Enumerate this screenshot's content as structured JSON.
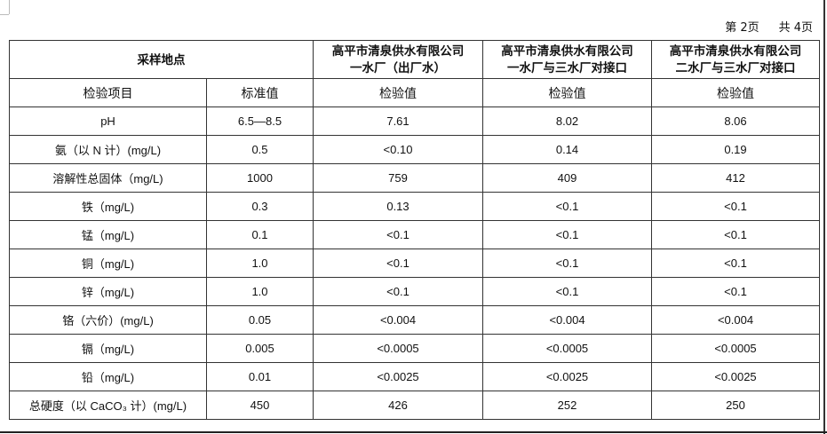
{
  "page_info": {
    "current": "第 2页",
    "total": "共 4页"
  },
  "header": {
    "sampling_location": "采样地点",
    "sites": [
      {
        "line1": "高平市清泉供水有限公司",
        "line2": "一水厂（出厂水）"
      },
      {
        "line1": "高平市清泉供水有限公司",
        "line2": "一水厂与三水厂对接口"
      },
      {
        "line1": "高平市清泉供水有限公司",
        "line2": "二水厂与三水厂对接口"
      }
    ]
  },
  "subheader": {
    "item": "检验项目",
    "standard": "标准值",
    "result": "检验值"
  },
  "rows": [
    {
      "item": "pH",
      "standard": "6.5—8.5",
      "v1": "7.61",
      "v2": "8.02",
      "v3": "8.06"
    },
    {
      "item": "氨（以 N 计）(mg/L)",
      "standard": "0.5",
      "v1": "<0.10",
      "v2": "0.14",
      "v3": "0.19"
    },
    {
      "item": "溶解性总固体（mg/L)",
      "standard": "1000",
      "v1": "759",
      "v2": "409",
      "v3": "412"
    },
    {
      "item": "铁（mg/L)",
      "standard": "0.3",
      "v1": "0.13",
      "v2": "<0.1",
      "v3": "<0.1"
    },
    {
      "item": "锰（mg/L)",
      "standard": "0.1",
      "v1": "<0.1",
      "v2": "<0.1",
      "v3": "<0.1"
    },
    {
      "item": "铜（mg/L)",
      "standard": "1.0",
      "v1": "<0.1",
      "v2": "<0.1",
      "v3": "<0.1"
    },
    {
      "item": "锌（mg/L)",
      "standard": "1.0",
      "v1": "<0.1",
      "v2": "<0.1",
      "v3": "<0.1"
    },
    {
      "item": "铬（六价）(mg/L)",
      "standard": "0.05",
      "v1": "<0.004",
      "v2": "<0.004",
      "v3": "<0.004"
    },
    {
      "item": "镉（mg/L)",
      "standard": "0.005",
      "v1": "<0.0005",
      "v2": "<0.0005",
      "v3": "<0.0005"
    },
    {
      "item": "铅（mg/L)",
      "standard": "0.01",
      "v1": "<0.0025",
      "v2": "<0.0025",
      "v3": "<0.0025"
    },
    {
      "item": "总硬度（以 CaCO₃ 计）(mg/L)",
      "standard": "450",
      "v1": "426",
      "v2": "252",
      "v3": "250"
    }
  ]
}
